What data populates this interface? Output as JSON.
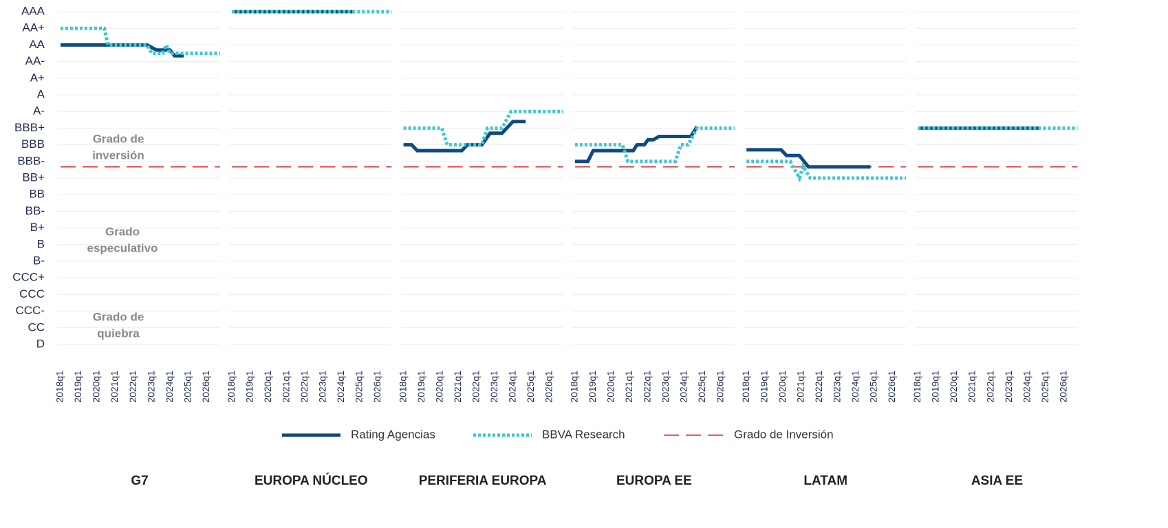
{
  "chart_data": {
    "type": "line",
    "legend": "bottom",
    "grid": true,
    "ylim": [
      0,
      20
    ],
    "yticks": [
      {
        "value": 20,
        "label": "AAA"
      },
      {
        "value": 19,
        "label": "AA+"
      },
      {
        "value": 18,
        "label": "AA"
      },
      {
        "value": 17,
        "label": "AA-"
      },
      {
        "value": 16,
        "label": "A+"
      },
      {
        "value": 15,
        "label": "A"
      },
      {
        "value": 14,
        "label": "A-"
      },
      {
        "value": 13,
        "label": "BBB+"
      },
      {
        "value": 12,
        "label": "BBB"
      },
      {
        "value": 11,
        "label": "BBB-"
      },
      {
        "value": 10,
        "label": "BB+"
      },
      {
        "value": 9,
        "label": "BB"
      },
      {
        "value": 8,
        "label": "BB-"
      },
      {
        "value": 7,
        "label": "B+"
      },
      {
        "value": 6,
        "label": "B"
      },
      {
        "value": 5,
        "label": "B-"
      },
      {
        "value": 4,
        "label": "CCC+"
      },
      {
        "value": 3,
        "label": "CCC"
      },
      {
        "value": 2,
        "label": "CCC-"
      },
      {
        "value": 1,
        "label": "CC"
      },
      {
        "value": 0,
        "label": "D"
      }
    ],
    "xlim": [
      2018,
      2026.75
    ],
    "xticks": [
      {
        "value": 2018,
        "label": "2018q1"
      },
      {
        "value": 2019,
        "label": "2019q1"
      },
      {
        "value": 2020,
        "label": "2020q1"
      },
      {
        "value": 2021,
        "label": "2021q1"
      },
      {
        "value": 2022,
        "label": "2022q1"
      },
      {
        "value": 2023,
        "label": "2023q1"
      },
      {
        "value": 2024,
        "label": "2024q1"
      },
      {
        "value": 2025,
        "label": "2025q1"
      },
      {
        "value": 2026,
        "label": "2026q1"
      }
    ],
    "reference_line": {
      "name": "Grado de Inversión",
      "value": 10.67,
      "color": "#e02424"
    },
    "annotations": [
      [
        "Grado de",
        "inversión"
      ],
      [
        "Grado",
        "especulativo"
      ],
      [
        "Grado de",
        "quiebra"
      ]
    ],
    "panels": [
      {
        "title": "G7",
        "series": [
          {
            "name": "Rating Agencias",
            "color": "#0e4a84",
            "x": [
              2018,
              2022.75,
              2023.25,
              2024,
              2024.25,
              2024.75
            ],
            "values": [
              18,
              18,
              17.7,
              17.7,
              17.35,
              17.35
            ]
          },
          {
            "name": "BBVA Research",
            "color": "#3cc8d0",
            "x": [
              2018,
              2020.4,
              2020.6,
              2022.75,
              2023,
              2023.6,
              2023.8,
              2024,
              2026.75
            ],
            "values": [
              19,
              19,
              18,
              18,
              17.5,
              17.5,
              18,
              17.5,
              17.5
            ]
          }
        ]
      },
      {
        "title": "EUROPA NÚCLEO",
        "series": [
          {
            "name": "Rating Agencias",
            "color": "#0e4a84",
            "x": [
              2018,
              2024.6
            ],
            "values": [
              20,
              20
            ]
          },
          {
            "name": "BBVA Research",
            "color": "#3cc8d0",
            "x": [
              2018,
              2026.75
            ],
            "values": [
              20,
              20
            ]
          }
        ]
      },
      {
        "title": "PERIFERIA EUROPA",
        "series": [
          {
            "name": "Rating Agencias",
            "color": "#0e4a84",
            "x": [
              2018,
              2018.45,
              2018.75,
              2021.2,
              2021.5,
              2022.3,
              2022.75,
              2023.4,
              2024,
              2024.7
            ],
            "values": [
              12,
              12,
              11.65,
              11.65,
              12,
              12,
              12.7,
              12.7,
              13.4,
              13.4
            ]
          },
          {
            "name": "BBVA Research",
            "color": "#3cc8d0",
            "x": [
              2018,
              2020.1,
              2020.4,
              2022.3,
              2022.6,
              2023.4,
              2023.9,
              2026.75
            ],
            "values": [
              13,
              13,
              12,
              12,
              13,
              13,
              14,
              14
            ]
          }
        ]
      },
      {
        "title": "EUROPA EE",
        "series": [
          {
            "name": "Rating Agencias",
            "color": "#0e4a84",
            "x": [
              2018,
              2018.7,
              2019,
              2021.2,
              2021.4,
              2021.8,
              2022,
              2022.3,
              2022.6,
              2024.35,
              2024.7
            ],
            "values": [
              11,
              11,
              11.65,
              11.65,
              12,
              12,
              12.3,
              12.3,
              12.5,
              12.5,
              13.1
            ]
          },
          {
            "name": "BBVA Research",
            "color": "#3cc8d0",
            "x": [
              2018,
              2020.6,
              2020.9,
              2023.5,
              2023.8,
              2024.2,
              2024.7,
              2026.75
            ],
            "values": [
              12,
              12,
              11,
              11,
              12,
              12,
              13,
              13
            ]
          }
        ]
      },
      {
        "title": "LATAM",
        "series": [
          {
            "name": "Rating Agencias",
            "color": "#0e4a84",
            "x": [
              2018,
              2019.9,
              2020.2,
              2020.9,
              2021.4,
              2024.8
            ],
            "values": [
              11.7,
              11.7,
              11.35,
              11.35,
              10.67,
              10.67
            ]
          },
          {
            "name": "BBVA Research",
            "color": "#3cc8d0",
            "x": [
              2018,
              2020.4,
              2020.9,
              2021.1,
              2021.5,
              2026.75
            ],
            "values": [
              11,
              11,
              10,
              10.7,
              10,
              10
            ]
          }
        ]
      },
      {
        "title": "ASIA EE",
        "series": [
          {
            "name": "Rating Agencias",
            "color": "#0e4a84",
            "x": [
              2018,
              2024.6
            ],
            "values": [
              13,
              13
            ]
          },
          {
            "name": "BBVA Research",
            "color": "#3cc8d0",
            "x": [
              2018,
              2026.75
            ],
            "values": [
              13,
              13
            ]
          }
        ]
      }
    ]
  }
}
